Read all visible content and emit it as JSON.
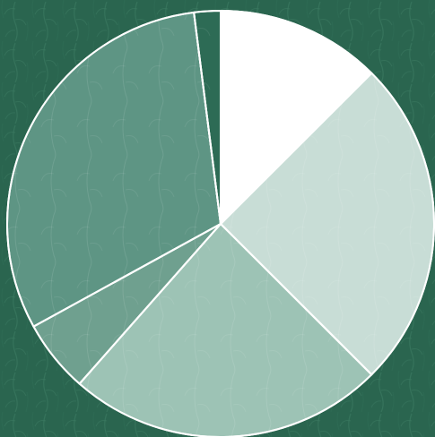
{
  "chart_data": {
    "type": "pie",
    "title": "",
    "slices": [
      {
        "value": 12.5,
        "color": "#ffffff"
      },
      {
        "value": 25.0,
        "color": "#c8ddd6"
      },
      {
        "value": 24.0,
        "color": "#9dc3b5"
      },
      {
        "value": 5.5,
        "color": "#6fa08f"
      },
      {
        "value": 31.0,
        "color": "#5e9584"
      },
      {
        "value": 2.0,
        "color": "#2d6b55"
      }
    ],
    "start_angle_deg": 0,
    "direction": "clockwise",
    "legend": "none",
    "labels_shown": false
  },
  "colors": {
    "background": "#2a654f",
    "background_pattern": "#3b7a62",
    "slice_border": "#ffffff"
  }
}
